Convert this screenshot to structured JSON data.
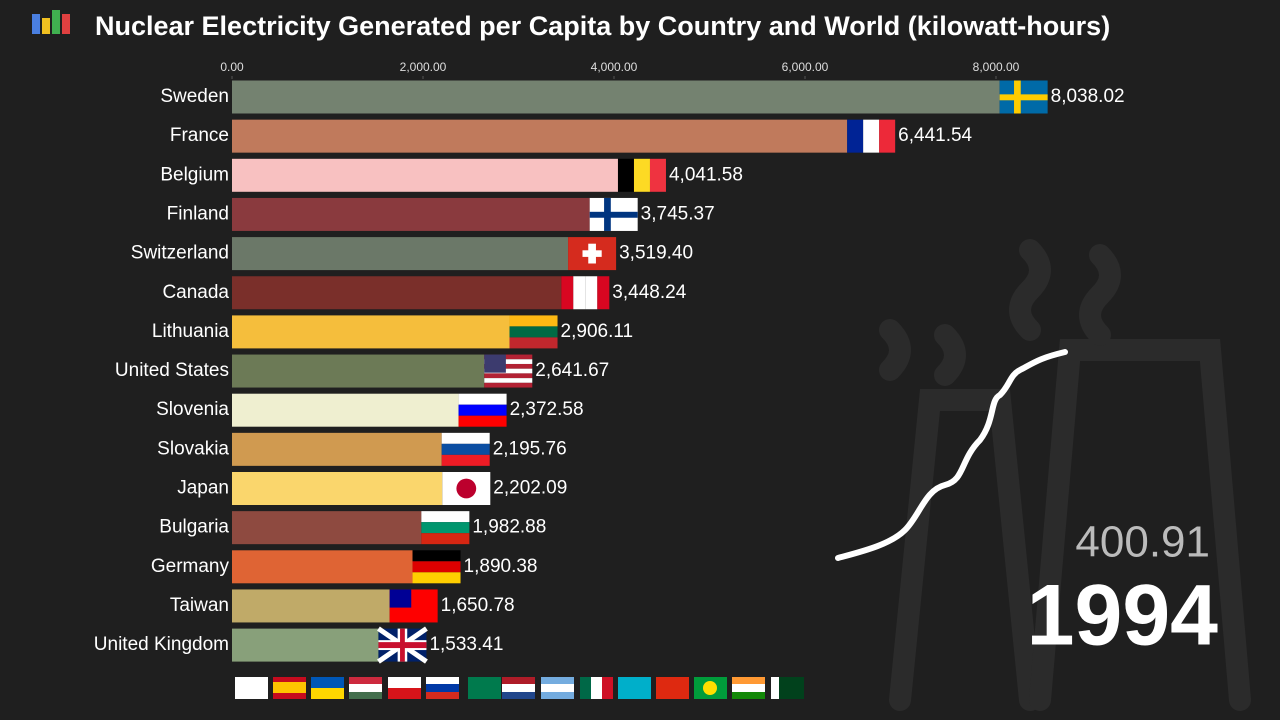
{
  "chart_data": {
    "type": "bar",
    "orientation": "horizontal",
    "title": "Nuclear Electricity Generated per Capita by Country and World (kilowatt-hours)",
    "categories": [
      "Sweden",
      "France",
      "Belgium",
      "Finland",
      "Switzerland",
      "Canada",
      "Lithuania",
      "United States",
      "Slovenia",
      "Slovakia",
      "Japan",
      "Bulgaria",
      "Germany",
      "Taiwan",
      "United Kingdom"
    ],
    "values": [
      8038.02,
      6441.54,
      4041.58,
      3745.37,
      3519.4,
      3448.24,
      2906.11,
      2641.67,
      2372.58,
      2195.76,
      2202.09,
      1982.88,
      1890.38,
      1650.78,
      1533.41
    ],
    "value_labels": [
      "8,038.02",
      "6,441.54",
      "4,041.58",
      "3,745.37",
      "3,519.40",
      "3,448.24",
      "2,906.11",
      "2,641.67",
      "2,372.58",
      "2,195.76",
      "2,202.09",
      "1,982.88",
      "1,890.38",
      "1,650.78",
      "1,533.41"
    ],
    "colors": [
      "#748270",
      "#c07a5c",
      "#f8c1c1",
      "#8a3a3e",
      "#6b7868",
      "#7a2f2a",
      "#f5be3c",
      "#6c7a56",
      "#efefd0",
      "#d09a50",
      "#fad66c",
      "#8e4a40",
      "#df6434",
      "#c0aa68",
      "#88a07a"
    ],
    "xlim": [
      0,
      8500
    ],
    "xticks": [
      {
        "value": 0,
        "label": "0.00"
      },
      {
        "value": 2000,
        "label": "2,000.00"
      },
      {
        "value": 4000,
        "label": "4,000.00"
      },
      {
        "value": 6000,
        "label": "6,000.00"
      },
      {
        "value": 8000,
        "label": "8,000.00"
      }
    ],
    "world_value": 400.91,
    "year": "1994"
  }
}
